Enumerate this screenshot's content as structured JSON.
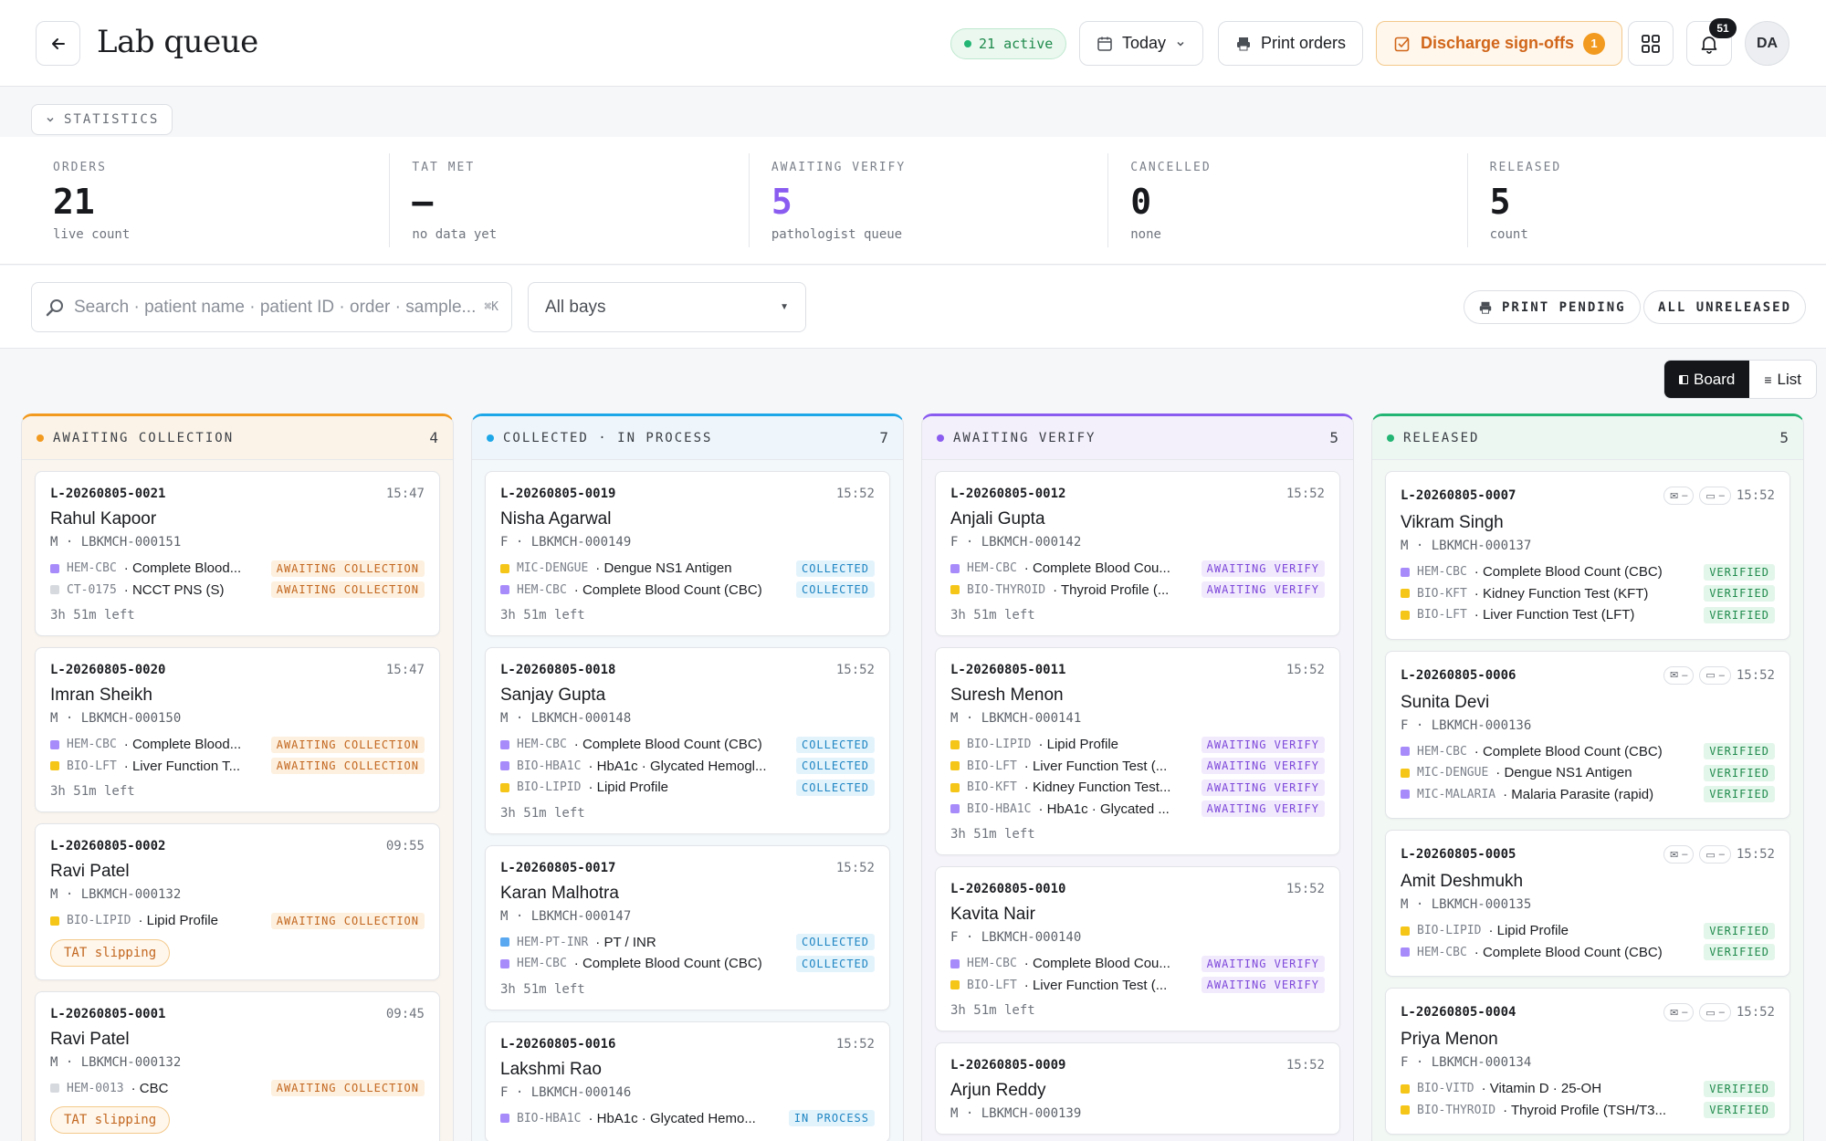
{
  "header": {
    "title": "Lab queue",
    "active_label": "21 active",
    "date_filter": "Today",
    "print_orders": "Print orders",
    "discharge_label": "Discharge sign-offs",
    "discharge_count": "1",
    "notifications_count": "51",
    "avatar_initials": "DA"
  },
  "stats": {
    "toggle_label": "STATISTICS",
    "items": [
      {
        "label": "ORDERS",
        "value": "21",
        "sub": "live count",
        "color": "#17191d"
      },
      {
        "label": "TAT MET",
        "value": "—",
        "sub": "no data yet",
        "color": "#17191d"
      },
      {
        "label": "AWAITING VERIFY",
        "value": "5",
        "sub": "pathologist queue",
        "color": "#8a5cf0"
      },
      {
        "label": "CANCELLED",
        "value": "0",
        "sub": "none",
        "color": "#17191d"
      },
      {
        "label": "RELEASED",
        "value": "5",
        "sub": "count",
        "color": "#17191d"
      }
    ]
  },
  "filters": {
    "search_placeholder": "Search · patient name · patient ID · order · sample...",
    "search_shortcut": "⌘K",
    "bay_select": "All bays",
    "print_pending": "PRINT PENDING",
    "all_unreleased": "ALL UNRELEASED"
  },
  "view": {
    "board": "Board",
    "list": "List"
  },
  "colors": {
    "awaiting_collection": "#f29a1f",
    "collected": "#1ea7e8",
    "awaiting_verify": "#8a5cf0",
    "released": "#22b573"
  },
  "columns": [
    {
      "title": "AWAITING COLLECTION",
      "count": "4",
      "cards": [
        {
          "id": "L-20260805-0021",
          "time": "15:47",
          "name": "Rahul Kapoor",
          "meta": "M · LBKMCH-000151",
          "tests": [
            {
              "code": "HEM-CBC",
              "name": "· Complete Blood...",
              "status": "AWAITING COLLECTION",
              "color": "#a78bfa"
            },
            {
              "code": "CT-0175",
              "name": "· NCCT PNS (S)",
              "status": "AWAITING COLLECTION",
              "color": "#d6d9de"
            }
          ],
          "left": "3h 51m left"
        },
        {
          "id": "L-20260805-0020",
          "time": "15:47",
          "name": "Imran Sheikh",
          "meta": "M · LBKMCH-000150",
          "tests": [
            {
              "code": "HEM-CBC",
              "name": "· Complete Blood...",
              "status": "AWAITING COLLECTION",
              "color": "#a78bfa"
            },
            {
              "code": "BIO-LFT",
              "name": "· Liver Function T...",
              "status": "AWAITING COLLECTION",
              "color": "#f5c518"
            }
          ],
          "left": "3h 51m left"
        },
        {
          "id": "L-20260805-0002",
          "time": "09:55",
          "name": "Ravi Patel",
          "meta": "M · LBKMCH-000132",
          "tests": [
            {
              "code": "BIO-LIPID",
              "name": "· Lipid Profile",
              "status": "AWAITING COLLECTION",
              "color": "#f5c518"
            }
          ],
          "slip": "TAT slipping"
        },
        {
          "id": "L-20260805-0001",
          "time": "09:45",
          "name": "Ravi Patel",
          "meta": "M · LBKMCH-000132",
          "tests": [
            {
              "code": "HEM-0013",
              "name": "· CBC",
              "status": "AWAITING COLLECTION",
              "color": "#d6d9de"
            }
          ],
          "slip": "TAT slipping"
        }
      ]
    },
    {
      "title": "COLLECTED · IN PROCESS",
      "count": "7",
      "cards": [
        {
          "id": "L-20260805-0019",
          "time": "15:52",
          "name": "Nisha Agarwal",
          "meta": "F · LBKMCH-000149",
          "tests": [
            {
              "code": "MIC-DENGUE",
              "name": "· Dengue NS1 Antigen",
              "status": "COLLECTED",
              "color": "#f5c518"
            },
            {
              "code": "HEM-CBC",
              "name": "· Complete Blood Count (CBC)",
              "status": "COLLECTED",
              "color": "#a78bfa"
            }
          ],
          "left": "3h 51m left"
        },
        {
          "id": "L-20260805-0018",
          "time": "15:52",
          "name": "Sanjay Gupta",
          "meta": "M · LBKMCH-000148",
          "tests": [
            {
              "code": "HEM-CBC",
              "name": "· Complete Blood Count (CBC)",
              "status": "COLLECTED",
              "color": "#a78bfa"
            },
            {
              "code": "BIO-HBA1C",
              "name": "· HbA1c · Glycated Hemogl...",
              "status": "COLLECTED",
              "color": "#a78bfa"
            },
            {
              "code": "BIO-LIPID",
              "name": "· Lipid Profile",
              "status": "COLLECTED",
              "color": "#f5c518"
            }
          ],
          "left": "3h 51m left"
        },
        {
          "id": "L-20260805-0017",
          "time": "15:52",
          "name": "Karan Malhotra",
          "meta": "M · LBKMCH-000147",
          "tests": [
            {
              "code": "HEM-PT-INR",
              "name": "· PT / INR",
              "status": "COLLECTED",
              "color": "#5aa8f0"
            },
            {
              "code": "HEM-CBC",
              "name": "· Complete Blood Count (CBC)",
              "status": "COLLECTED",
              "color": "#a78bfa"
            }
          ],
          "left": "3h 51m left"
        },
        {
          "id": "L-20260805-0016",
          "time": "15:52",
          "name": "Lakshmi Rao",
          "meta": "F · LBKMCH-000146",
          "tests": [
            {
              "code": "BIO-HBA1C",
              "name": "· HbA1c · Glycated Hemo...",
              "status": "IN PROCESS",
              "color": "#a78bfa"
            }
          ],
          "left": ""
        }
      ]
    },
    {
      "title": "AWAITING VERIFY",
      "count": "5",
      "cards": [
        {
          "id": "L-20260805-0012",
          "time": "15:52",
          "name": "Anjali Gupta",
          "meta": "F · LBKMCH-000142",
          "tests": [
            {
              "code": "HEM-CBC",
              "name": "· Complete Blood Cou...",
              "status": "AWAITING VERIFY",
              "color": "#a78bfa"
            },
            {
              "code": "BIO-THYROID",
              "name": "· Thyroid Profile (...",
              "status": "AWAITING VERIFY",
              "color": "#f5c518"
            }
          ],
          "left": "3h 51m left"
        },
        {
          "id": "L-20260805-0011",
          "time": "15:52",
          "name": "Suresh Menon",
          "meta": "M · LBKMCH-000141",
          "tests": [
            {
              "code": "BIO-LIPID",
              "name": "· Lipid Profile",
              "status": "AWAITING VERIFY",
              "color": "#f5c518"
            },
            {
              "code": "BIO-LFT",
              "name": "· Liver Function Test (...",
              "status": "AWAITING VERIFY",
              "color": "#f5c518"
            },
            {
              "code": "BIO-KFT",
              "name": "· Kidney Function Test...",
              "status": "AWAITING VERIFY",
              "color": "#f5c518"
            },
            {
              "code": "BIO-HBA1C",
              "name": "· HbA1c · Glycated ...",
              "status": "AWAITING VERIFY",
              "color": "#a78bfa"
            }
          ],
          "left": "3h 51m left"
        },
        {
          "id": "L-20260805-0010",
          "time": "15:52",
          "name": "Kavita Nair",
          "meta": "F · LBKMCH-000140",
          "tests": [
            {
              "code": "HEM-CBC",
              "name": "· Complete Blood Cou...",
              "status": "AWAITING VERIFY",
              "color": "#a78bfa"
            },
            {
              "code": "BIO-LFT",
              "name": "· Liver Function Test (...",
              "status": "AWAITING VERIFY",
              "color": "#f5c518"
            }
          ],
          "left": "3h 51m left"
        },
        {
          "id": "L-20260805-0009",
          "time": "15:52",
          "name": "Arjun Reddy",
          "meta": "M · LBKMCH-000139",
          "tests": [],
          "left": ""
        }
      ]
    },
    {
      "title": "RELEASED",
      "count": "5",
      "cards": [
        {
          "id": "L-20260805-0007",
          "time": "15:52",
          "name": "Vikram Singh",
          "meta": "M · LBKMCH-000137",
          "icons": true,
          "tests": [
            {
              "code": "HEM-CBC",
              "name": "· Complete Blood Count (CBC)",
              "status": "VERIFIED",
              "color": "#a78bfa"
            },
            {
              "code": "BIO-KFT",
              "name": "· Kidney Function Test (KFT)",
              "status": "VERIFIED",
              "color": "#f5c518"
            },
            {
              "code": "BIO-LFT",
              "name": "· Liver Function Test (LFT)",
              "status": "VERIFIED",
              "color": "#f5c518"
            }
          ]
        },
        {
          "id": "L-20260805-0006",
          "time": "15:52",
          "name": "Sunita Devi",
          "meta": "F · LBKMCH-000136",
          "icons": true,
          "tests": [
            {
              "code": "HEM-CBC",
              "name": "· Complete Blood Count (CBC)",
              "status": "VERIFIED",
              "color": "#a78bfa"
            },
            {
              "code": "MIC-DENGUE",
              "name": "· Dengue NS1 Antigen",
              "status": "VERIFIED",
              "color": "#f5c518"
            },
            {
              "code": "MIC-MALARIA",
              "name": "· Malaria Parasite (rapid)",
              "status": "VERIFIED",
              "color": "#a78bfa"
            }
          ]
        },
        {
          "id": "L-20260805-0005",
          "time": "15:52",
          "name": "Amit Deshmukh",
          "meta": "M · LBKMCH-000135",
          "icons": true,
          "tests": [
            {
              "code": "BIO-LIPID",
              "name": "· Lipid Profile",
              "status": "VERIFIED",
              "color": "#f5c518"
            },
            {
              "code": "HEM-CBC",
              "name": "· Complete Blood Count (CBC)",
              "status": "VERIFIED",
              "color": "#a78bfa"
            }
          ]
        },
        {
          "id": "L-20260805-0004",
          "time": "15:52",
          "name": "Priya Menon",
          "meta": "F · LBKMCH-000134",
          "icons": true,
          "tests": [
            {
              "code": "BIO-VITD",
              "name": "· Vitamin D · 25-OH",
              "status": "VERIFIED",
              "color": "#f5c518"
            },
            {
              "code": "BIO-THYROID",
              "name": "· Thyroid Profile (TSH/T3...",
              "status": "VERIFIED",
              "color": "#f5c518"
            }
          ]
        }
      ]
    }
  ]
}
